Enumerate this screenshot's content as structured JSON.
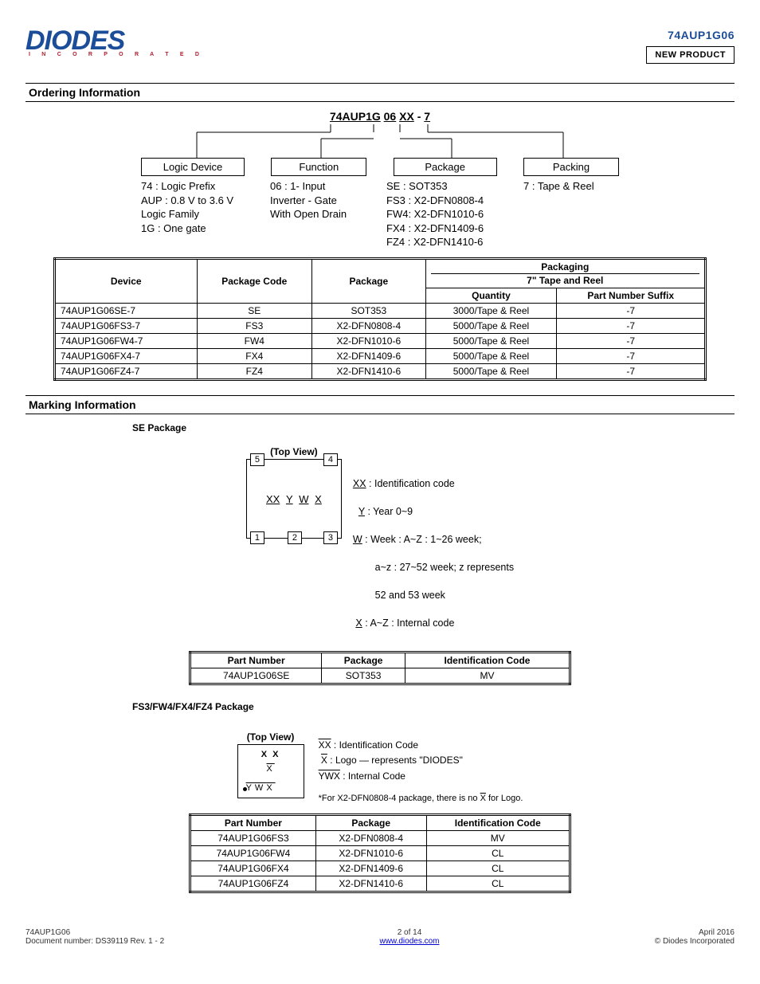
{
  "logo": {
    "name": "DIODES",
    "sub": "I N C O R P O R A T E D"
  },
  "part_number": "74AUP1G06",
  "new_product_label": "NEW PRODUCT",
  "sections": {
    "ordering": "Ordering Information",
    "marking": "Marking Information"
  },
  "ordering": {
    "code_parts": [
      "74AUP1G",
      "06",
      "XX",
      "-",
      "7"
    ],
    "col_labels": [
      "Logic Device",
      "Function",
      "Package",
      "Packing"
    ],
    "col1_text": "74 : Logic Prefix\nAUP  : 0.8 V to 3.6 V\n           Logic Family\n1G : One gate",
    "col2_text": "06  : 1- Input\nInverter - Gate\nWith Open Drain",
    "col3_text": "SE   : SOT353\nFS3 : X2-DFN0808-4\nFW4: X2-DFN1010-6\nFX4 : X2-DFN1409-6\nFZ4 : X2-DFN1410-6",
    "col4_text": "7 : Tape & Reel"
  },
  "ordering_table": {
    "headers": [
      "Device",
      "Package Code",
      "Package",
      "Packaging",
      "7\" Tape and Reel"
    ],
    "sub_headers": [
      "Quantity",
      "Part Number Suffix"
    ],
    "rows": [
      [
        "74AUP1G06SE-7",
        "SE",
        "SOT353",
        "3000/Tape & Reel",
        "-7"
      ],
      [
        "74AUP1G06FS3-7",
        "FS3",
        "X2-DFN0808-4",
        "5000/Tape & Reel",
        "-7"
      ],
      [
        "74AUP1G06FW4-7",
        "FW4",
        "X2-DFN1010-6",
        "5000/Tape & Reel",
        "-7"
      ],
      [
        "74AUP1G06FX4-7",
        "FX4",
        "X2-DFN1409-6",
        "5000/Tape & Reel",
        "-7"
      ],
      [
        "74AUP1G06FZ4-7",
        "FZ4",
        "X2-DFN1410-6",
        "5000/Tape & Reel",
        "-7"
      ]
    ]
  },
  "marking1": {
    "title": "SE Package",
    "top_view": "(Top View)",
    "pins": {
      "tl": "5",
      "tr": "4",
      "bl": "1",
      "bm": "2",
      "br": "3"
    },
    "center_codes": [
      "XX",
      "Y",
      "W",
      "X"
    ],
    "legend": {
      "xx": "XX : Identification code",
      "y": "Y : Year 0~9",
      "w": "W : Week : A~Z : 1~26 week;\n        a~z : 27~52 week; z represents\n        52 and 53 week",
      "x": "X : A~Z : Internal code"
    },
    "table": {
      "headers": [
        "Part Number",
        "Package",
        "Identification Code"
      ],
      "rows": [
        [
          "74AUP1G06SE",
          "SOT353",
          "MV"
        ]
      ]
    }
  },
  "marking2": {
    "title": "FS3/FW4/FX4/FZ4 Package",
    "top_view": "(Top View)",
    "top_code": "X X",
    "mid_code": "X",
    "bot_codes": [
      "Y",
      "W",
      "X"
    ],
    "legend": {
      "xx": "XX : Identification Code",
      "xbar": "X : Logo — represents \"DIODES\"",
      "ywx": "YWX : Internal Code"
    },
    "table": {
      "headers": [
        "Part Number",
        "Package",
        "Identification Code"
      ],
      "rows": [
        [
          "74AUP1G06FS3",
          "X2-DFN0808-4",
          "MV"
        ],
        [
          "74AUP1G06FW4",
          "X2-DFN1010-6",
          "CL"
        ],
        [
          "74AUP1G06FX4",
          "X2-DFN1409-6",
          "CL"
        ],
        [
          "74AUP1G06FZ4",
          "X2-DFN1410-6",
          "CL"
        ]
      ]
    }
  },
  "footer": {
    "left": "74AUP1G06\nDocument number: DS39119 Rev. 1 - 2",
    "mid_line1": "2 of 14",
    "mid_line2": "www.diodes.com",
    "right": "April 2016\n© Diodes Incorporated"
  },
  "colors": {
    "blue": "#1b4d99",
    "red": "#b11d2d",
    "link": "#0000cc"
  }
}
